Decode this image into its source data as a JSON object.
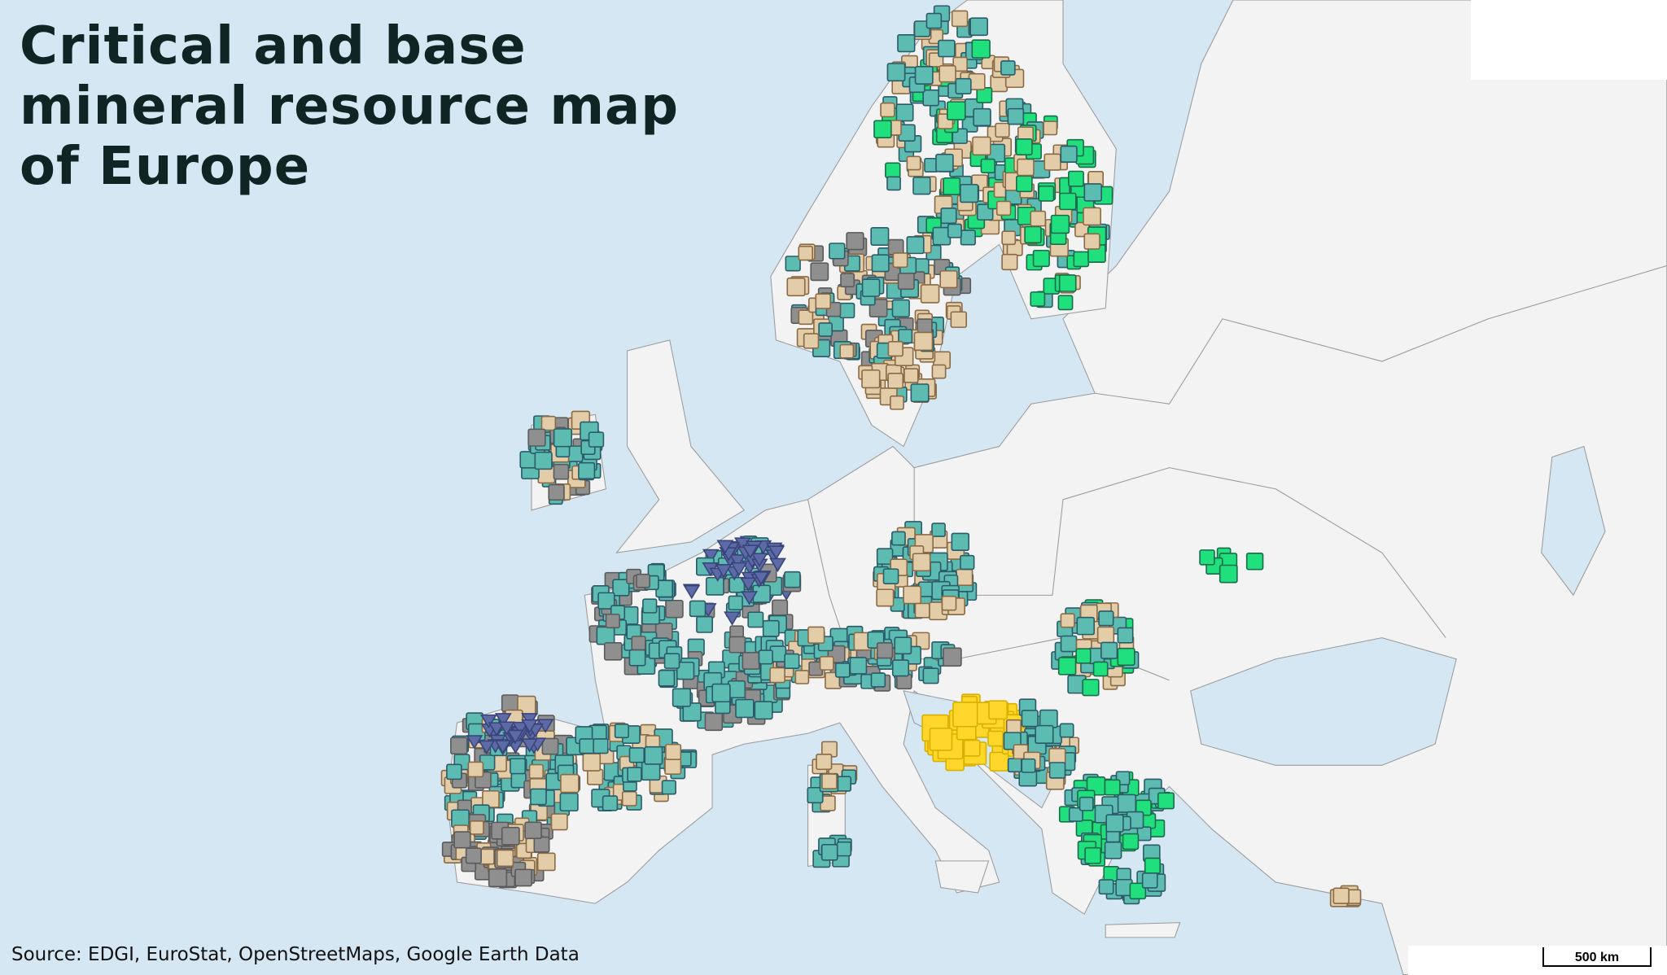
{
  "title": "Critical and base mineral resource map of Europe",
  "source": "Source: EDGI, EuroStat, OpenStreetMaps, Google Earth Data",
  "scale_label": "500 km"
}
